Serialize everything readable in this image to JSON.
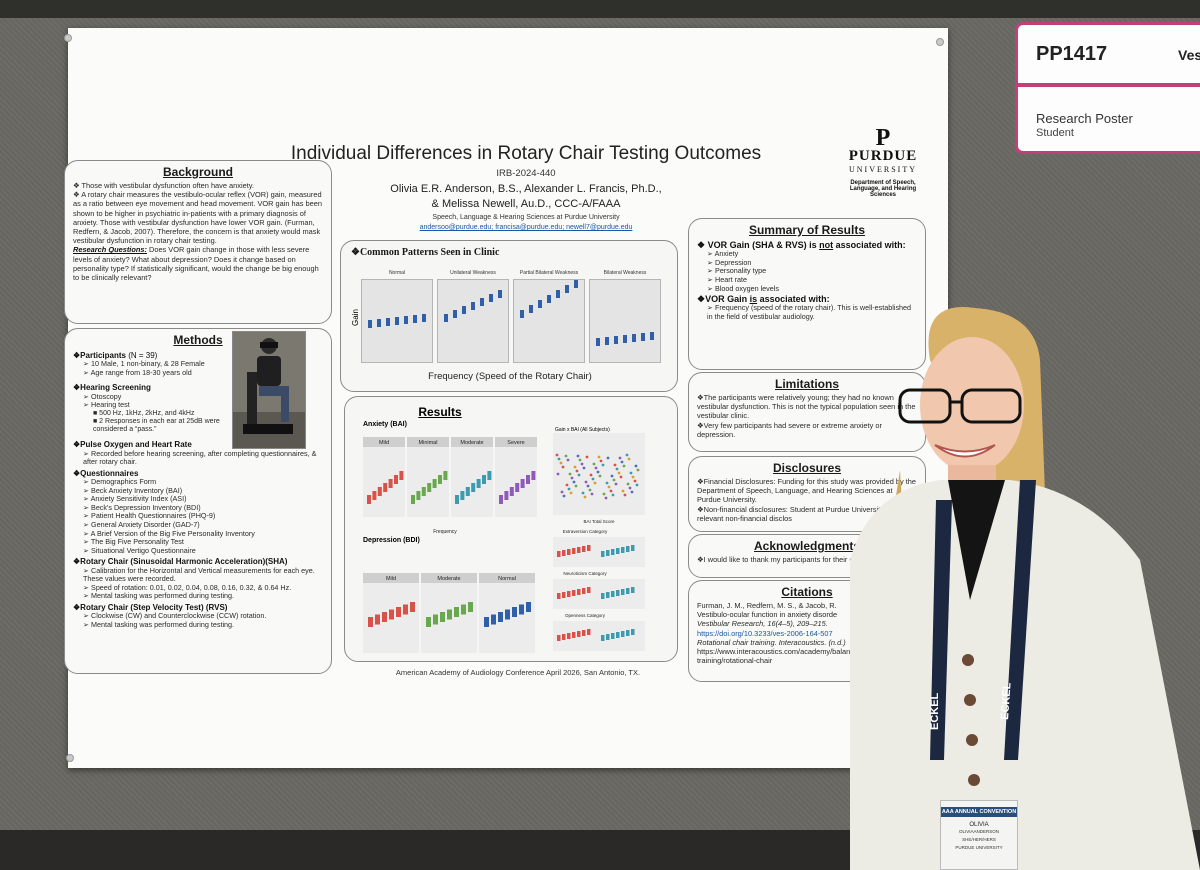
{
  "sign": {
    "code": "PP1417",
    "title_fragment": "Ves",
    "type": "Research Poster",
    "category": "Student"
  },
  "poster": {
    "title": "Individual Differences in Rotary Chair Testing Outcomes",
    "irb": "IRB-2024-440",
    "authors_line1": "Olivia E.R. Anderson, B.S., Alexander L. Francis, Ph.D.,",
    "authors_line2": "& Melissa Newell, Au.D., CCC-A/FAAA",
    "affiliation": "Speech, Language & Hearing Sciences at Purdue University",
    "emails": "andersoo@purdue.edu; francisa@purdue.edu; newell7@purdue.edu",
    "footer": "American Academy of Audiology Conference April 2026, San Antonio, TX.",
    "logo": {
      "mark": "P",
      "name": "PURDUE",
      "university": "UNIVERSITY",
      "dept": "Department of Speech, Language, and Hearing Sciences"
    },
    "background": {
      "heading": "Background",
      "p1": "❖ Those with vestibular dysfunction often have anxiety.",
      "p2": "❖ A rotary chair measures the vestibulo-ocular reflex (VOR) gain, measured as a ratio between eye movement and head movement. VOR gain has been shown to be higher in psychiatric in-patients with a primary diagnosis of anxiety. Those with vestibular dysfunction have lower VOR gain. (Furman, Redfern, & Jacob, 2007). Therefore, the concern is that anxiety would mask vestibular dysfunction in rotary chair testing.",
      "rq_label": "Research Questions:",
      "rq": "Does VOR gain change in those with less severe levels of anxiety? What about depression? Does it change based on personality type? If statistically significant, would the change be big enough to be clinically relevant?"
    },
    "methods": {
      "heading": "Methods",
      "participants_label": "❖Participants",
      "participants_n": "(N = 39)",
      "participants_items": [
        "➢ 10 Male, 1 non-binary, & 28 Female",
        "➢ Age range from 18-30 years old"
      ],
      "hearing_label": "❖Hearing Screening",
      "hearing_items": [
        "➢ Otoscopy",
        "➢ Hearing test"
      ],
      "hearing_sub": [
        "■ 500 Hz, 1kHz, 2kHz, and 4kHz",
        "■ 2 Responses in each ear at 25dB were considered a “pass.”"
      ],
      "pulse_label": "❖Pulse Oxygen and Heart Rate",
      "pulse_items": [
        "➢ Recorded before hearing screening, after completing questionnaires, & after rotary chair."
      ],
      "quest_label": "❖Questionnaires",
      "quest_items": [
        "➢ Demographics Form",
        "➢ Beck Anxiety Inventory (BAI)",
        "➢ Anxiety Sensitivity Index (ASI)",
        "➢ Beck's Depression Inventory (BDI)",
        "➢ Patient Health Questionnaires (PHQ-9)",
        "➢ General Anxiety Disorder (GAD-7)",
        "➢ A Brief Version of the Big Five Personality Inventory",
        "➢ The Big Five Personality Test",
        "➢ Situational Vertigo Questionnaire"
      ],
      "sha_label": "❖Rotary Chair (Sinusoidal Harmonic Acceleration)(SHA)",
      "sha_items": [
        "➢ Calibration for the Horizontal and Vertical measurements for each eye. These values were recorded.",
        "➢ Speed of rotation: 0.01, 0.02, 0.04, 0.08, 0.16, 0.32, & 0.64 Hz.",
        "➢ Mental tasking was performed during testing."
      ],
      "rvs_label": "❖Rotary Chair (Step Velocity Test) (RVS)",
      "rvs_items": [
        "➢ Clockwise (CW) and Counterclockwise (CCW) rotation.",
        "➢ Mental tasking was performed during testing."
      ]
    },
    "patterns": {
      "heading": "❖Common Patterns Seen in Clinic",
      "panels": [
        "Normal",
        "Unilateral Weakness",
        "Partial Bilateral Weakness",
        "Bilateral Weakness"
      ],
      "ylabel": "Gain",
      "xlabel": "Frequency (Speed of the Rotary Chair)"
    },
    "results": {
      "heading": "Results",
      "anxiety_label": "Anxiety (BAI)",
      "anxiety_panels": [
        "Mild",
        "Minimal",
        "Moderate",
        "Severe"
      ],
      "depression_label": "Depression (BDI)",
      "depression_panels": [
        "Mild",
        "Moderate",
        "Normal"
      ],
      "scatter_title": "Gain x BAI (All Subjects)",
      "scatter_xlabel": "BAI Total Score",
      "xlabel": "Frequency",
      "ylabel": "Gain",
      "personality_titles": [
        "Extraversion Category",
        "Neuroticism Category",
        "Openness Category"
      ],
      "personality_sub": [
        "High",
        "Low"
      ]
    },
    "summary": {
      "heading": "Summary of Results",
      "no_assoc_pre": "❖ VOR Gain (SHA & RVS) is",
      "no_assoc_not": "not",
      "no_assoc_post": "associated with:",
      "no_assoc_items": [
        "➢ Anxiety",
        "➢ Depression",
        "➢ Personality type",
        "➢ Heart rate",
        "➢ Blood oxygen levels"
      ],
      "assoc_pre": "❖VOR Gain",
      "assoc_is": "is",
      "assoc_post": "associated with:",
      "assoc_items": [
        "➢ Frequency (speed of the rotary chair). This is well-established in the field of vestibular audiology."
      ]
    },
    "limitations": {
      "heading": "Limitations",
      "items": [
        "❖The participants were relatively young; they had no known vestibular dysfunction. This is not the typical population seen in the vestibular clinic.",
        "❖Very few participants had severe or extreme anxiety or depression."
      ]
    },
    "disclosures": {
      "heading": "Disclosures",
      "items": [
        "❖Financial Disclosures: Funding for this study was provided by the Department of Speech, Language, and Hearing Sciences at Purdue University.",
        "❖Non-financial disclosures: Student at Purdue University. No other relevant non-financial disclos"
      ]
    },
    "acknowledgments": {
      "heading": "Acknowledgments",
      "text": "❖I would like to thank my participants for their contribution."
    },
    "citations": {
      "heading": "Citations",
      "c1a": "Furman, J. M., Redfern, M. S., & Jacob, R.",
      "c1b": "Vestibulo-ocular function in anxiety disorde",
      "c1c": "Vestibular Research, 16(4–5), 209–215.",
      "c1d": "https://doi.org/10.3233/ves-2006-164-507",
      "c2a": "Rotational chair training. Interacoustics. (n.d.)",
      "c2b": "https://www.interacoustics.com/academy/balan",
      "c2c": "training/rotational-chair"
    }
  },
  "badge": {
    "convention": "AAA ANNUAL CONVENTION",
    "name": "OLIVIA",
    "fullname": "OLIVIAANDERSON",
    "role": "SHE/HER/HERS",
    "org": "PURDUE UNIVERSITY"
  },
  "lanyard_text": "ECKEL",
  "colors": {
    "sign_accent": "#c2407a",
    "sign_red": "#d61f3a",
    "red_series": "#d9524a",
    "green_series": "#6aa84f",
    "teal_series": "#3d9bb0",
    "purple_series": "#8e5bb8",
    "pattern_box": "#2f5fa8"
  }
}
